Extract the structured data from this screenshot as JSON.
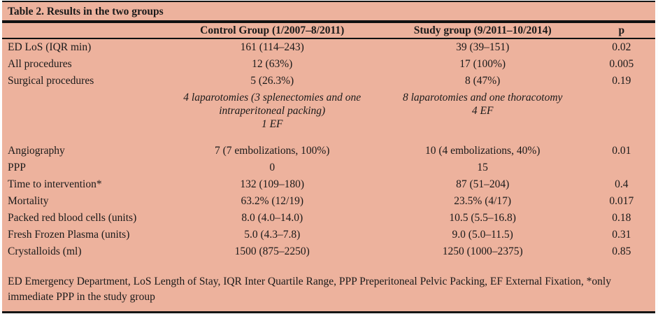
{
  "colors": {
    "table_background": "#edb29d",
    "rule_color": "#111111",
    "text_color": "#1a1a1a"
  },
  "table": {
    "title": "Table 2. Results in the two groups",
    "columns": {
      "label": "",
      "control": "Control Group (1/2007–8/2011)",
      "study": "Study group (9/2011–10/2014)",
      "p": "p"
    },
    "rows": [
      {
        "label": "ED LoS (IQR min)",
        "control": "161 (114–243)",
        "study": "39 (39–151)",
        "p": "0.02"
      },
      {
        "label": "All procedures",
        "control": "12 (63%)",
        "study": "17 (100%)",
        "p": "0.005"
      },
      {
        "label": "Surgical procedures",
        "control": "5 (26.3%)",
        "study": "8 (47%)",
        "p": "0.19"
      },
      {
        "label": "",
        "control_desc": "4 laparotomies (3 splenectomies and one intraperitoneal packing)",
        "control_ef": "1 EF",
        "study_desc": "8 laparotomies and one thoracotomy",
        "study_ef": "4 EF",
        "p": ""
      },
      {
        "label": "Angiography",
        "control": "7 (7 embolizations, 100%)",
        "study": "10 (4 embolizations, 40%)",
        "p": "0.01"
      },
      {
        "label": "PPP",
        "control": "0",
        "study": "15",
        "p": ""
      },
      {
        "label": "Time to intervention*",
        "control": "132 (109–180)",
        "study": "87 (51–204)",
        "p": "0.4"
      },
      {
        "label": "Mortality",
        "control": "63.2% (12/19)",
        "study": "23.5% (4/17)",
        "p": "0.017"
      },
      {
        "label": "Packed red blood cells (units)",
        "control": "8.0 (4.0–14.0)",
        "study": "10.5 (5.5–16.8)",
        "p": "0.18"
      },
      {
        "label": "Fresh Frozen Plasma (units)",
        "control": "5.0 (4.3–7.8)",
        "study": "9.0 (5.0–11.5)",
        "p": "0.31"
      },
      {
        "label": "Crystalloids (ml)",
        "control": "1500 (875–2250)",
        "study": "1250 (1000–2375)",
        "p": "0.85"
      }
    ],
    "footnote": "ED Emergency Department, LoS Length of Stay, IQR Inter Quartile Range, PPP Preperitoneal Pelvic Packing, EF External Fixation, *only immediate PPP in the study group"
  }
}
